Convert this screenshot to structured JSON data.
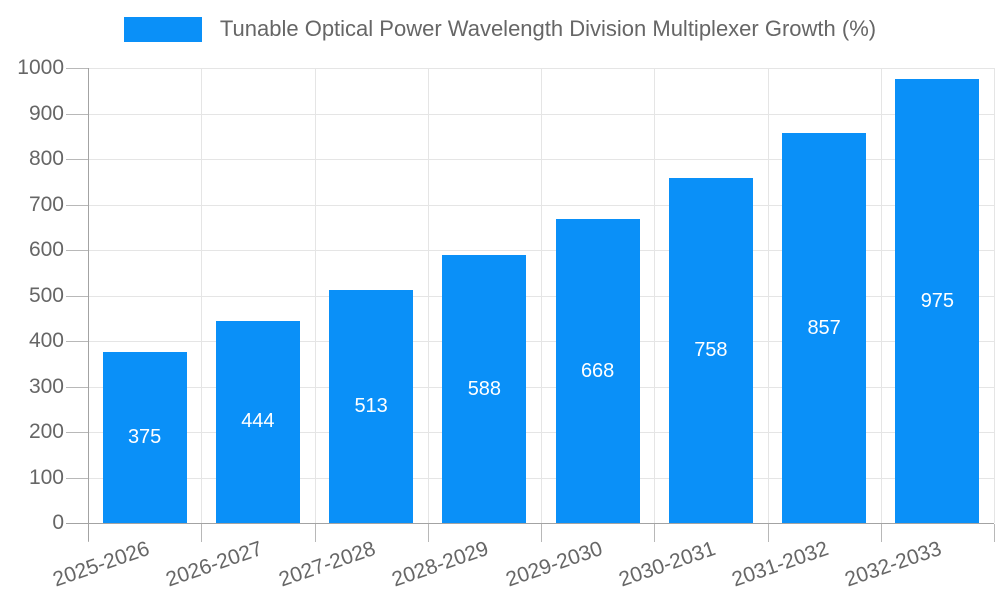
{
  "chart_data": {
    "type": "bar",
    "title": "Tunable Optical Power Wavelength Division Multiplexer Growth (%)",
    "categories": [
      "2025-2026",
      "2026-2027",
      "2027-2028",
      "2028-2029",
      "2029-2030",
      "2030-2031",
      "2031-2032",
      "2032-2033"
    ],
    "values": [
      375,
      444,
      513,
      588,
      668,
      758,
      857,
      975
    ],
    "xlabel": "",
    "ylabel": "",
    "ylim": [
      0,
      1000
    ],
    "ytick_step": 100,
    "grid": true,
    "legend_position": "top",
    "value_labels_position": "inside-center",
    "x_label_rotation_deg": -19,
    "colors": {
      "bar": "#0a90f8",
      "value_label": "#ffffff",
      "grid": "#e5e5e5",
      "axis": "#a3a3a3",
      "tick": "#b8b8b8",
      "tick_label": "#666666",
      "legend_text": "#666666",
      "background": "#ffffff"
    }
  }
}
